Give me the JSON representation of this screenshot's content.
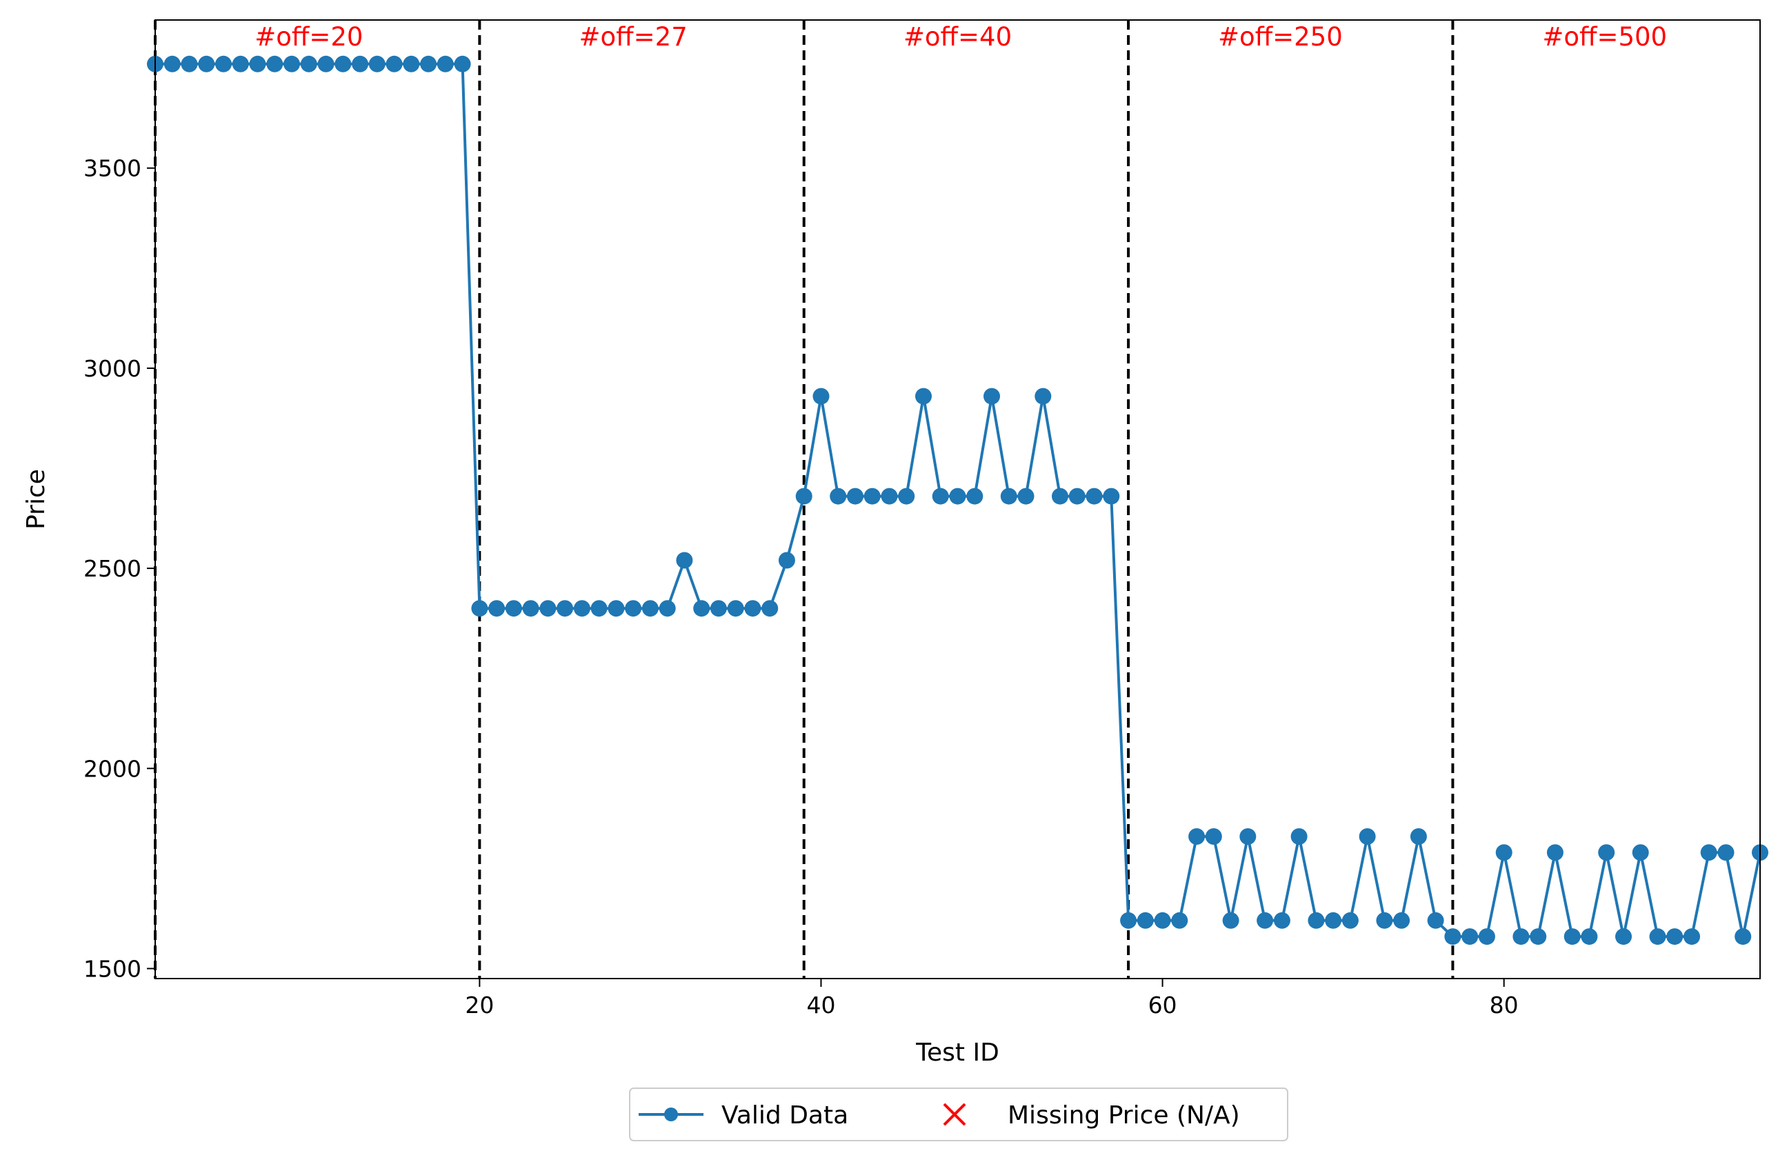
{
  "chart_data": {
    "type": "line",
    "title": "",
    "xlabel": "Test ID",
    "ylabel": "Price",
    "xlim": [
      1,
      95
    ],
    "ylim": [
      1475,
      3870
    ],
    "xticks": [
      20,
      40,
      60,
      80
    ],
    "yticks": [
      1500,
      2000,
      2500,
      3000,
      3500
    ],
    "grid": false,
    "legend_placement": "bottom-center outside plot",
    "series": [
      {
        "name": "Valid Data",
        "marker": "circle",
        "color": "#1f77b4",
        "x": [
          1,
          2,
          3,
          4,
          5,
          6,
          7,
          8,
          9,
          10,
          11,
          12,
          13,
          14,
          15,
          16,
          17,
          18,
          19,
          20,
          21,
          22,
          23,
          24,
          25,
          26,
          27,
          28,
          29,
          30,
          31,
          32,
          33,
          34,
          35,
          36,
          37,
          38,
          39,
          40,
          41,
          42,
          43,
          44,
          45,
          46,
          47,
          48,
          49,
          50,
          51,
          52,
          53,
          54,
          55,
          56,
          57,
          58,
          59,
          60,
          61,
          62,
          63,
          64,
          65,
          66,
          67,
          68,
          69,
          70,
          71,
          72,
          73,
          74,
          75,
          76,
          77,
          78,
          79,
          80,
          81,
          82,
          83,
          84,
          85,
          86,
          87,
          88,
          89,
          90,
          91,
          92,
          93,
          94,
          95
        ],
        "y": [
          3760,
          3760,
          3760,
          3760,
          3760,
          3760,
          3760,
          3760,
          3760,
          3760,
          3760,
          3760,
          3760,
          3760,
          3760,
          3760,
          3760,
          3760,
          3760,
          2400,
          2400,
          2400,
          2400,
          2400,
          2400,
          2400,
          2400,
          2400,
          2400,
          2400,
          2400,
          2520,
          2400,
          2400,
          2400,
          2400,
          2400,
          2520,
          2680,
          2930,
          2680,
          2680,
          2680,
          2680,
          2680,
          2930,
          2680,
          2680,
          2680,
          2930,
          2680,
          2680,
          2930,
          2680,
          2680,
          2680,
          2680,
          1620,
          1620,
          1620,
          1620,
          1830,
          1830,
          1620,
          1830,
          1620,
          1620,
          1830,
          1620,
          1620,
          1620,
          1830,
          1620,
          1620,
          1830,
          1620,
          1580,
          1580,
          1580,
          1790,
          1580,
          1580,
          1790,
          1580,
          1580,
          1790,
          1580,
          1790,
          1580,
          1580,
          1580,
          1790,
          1790,
          1580,
          1790
        ]
      },
      {
        "name": "Missing Price (N/A)",
        "marker": "x",
        "color": "#ff0000",
        "x": [],
        "y": []
      }
    ],
    "dividers": [
      {
        "x": 1,
        "style": "dashed"
      },
      {
        "x": 20,
        "style": "dashed"
      },
      {
        "x": 39,
        "style": "dashed"
      },
      {
        "x": 58,
        "style": "dashed"
      },
      {
        "x": 77,
        "style": "dashed"
      }
    ],
    "annotations": [
      {
        "text": "#off=20",
        "x": 10.0,
        "color": "#ff0000"
      },
      {
        "text": "#off=27",
        "x": 29.0,
        "color": "#ff0000"
      },
      {
        "text": "#off=40",
        "x": 48.0,
        "color": "#ff0000"
      },
      {
        "text": "#off=250",
        "x": 66.9,
        "color": "#ff0000"
      },
      {
        "text": "#off=500",
        "x": 85.9,
        "color": "#ff0000"
      }
    ]
  }
}
